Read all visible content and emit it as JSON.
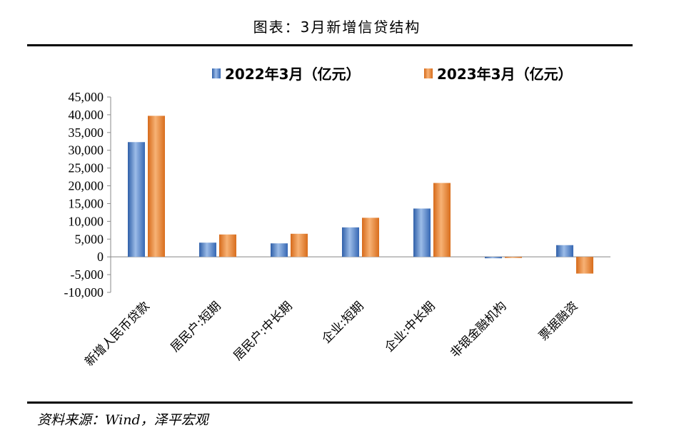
{
  "title": "图表：3月新增信贷结构",
  "source": "资料来源：Wind，泽平宏观",
  "chart_data": {
    "type": "bar",
    "categories": [
      "新增人民币贷款",
      "居民户:短期",
      "居民户:中长期",
      "企业:短期",
      "企业:中长期",
      "非银金融机构",
      "票据融资"
    ],
    "series": [
      {
        "name": "2022年3月（亿元）",
        "color": "#4a7cc5",
        "values": [
          32300,
          4000,
          3800,
          8300,
          13600,
          -400,
          3300
        ]
      },
      {
        "name": "2023年3月（亿元）",
        "color": "#e8842c",
        "values": [
          39700,
          6300,
          6500,
          11000,
          20800,
          -300,
          -4700
        ]
      }
    ],
    "ylim": [
      -10000,
      45000
    ],
    "yticks": [
      "45,000",
      "40,000",
      "35,000",
      "30,000",
      "25,000",
      "20,000",
      "15,000",
      "10,000",
      "5,000",
      "0",
      "-5,000",
      "-10,000"
    ],
    "legend_position": "top",
    "grid": false
  }
}
